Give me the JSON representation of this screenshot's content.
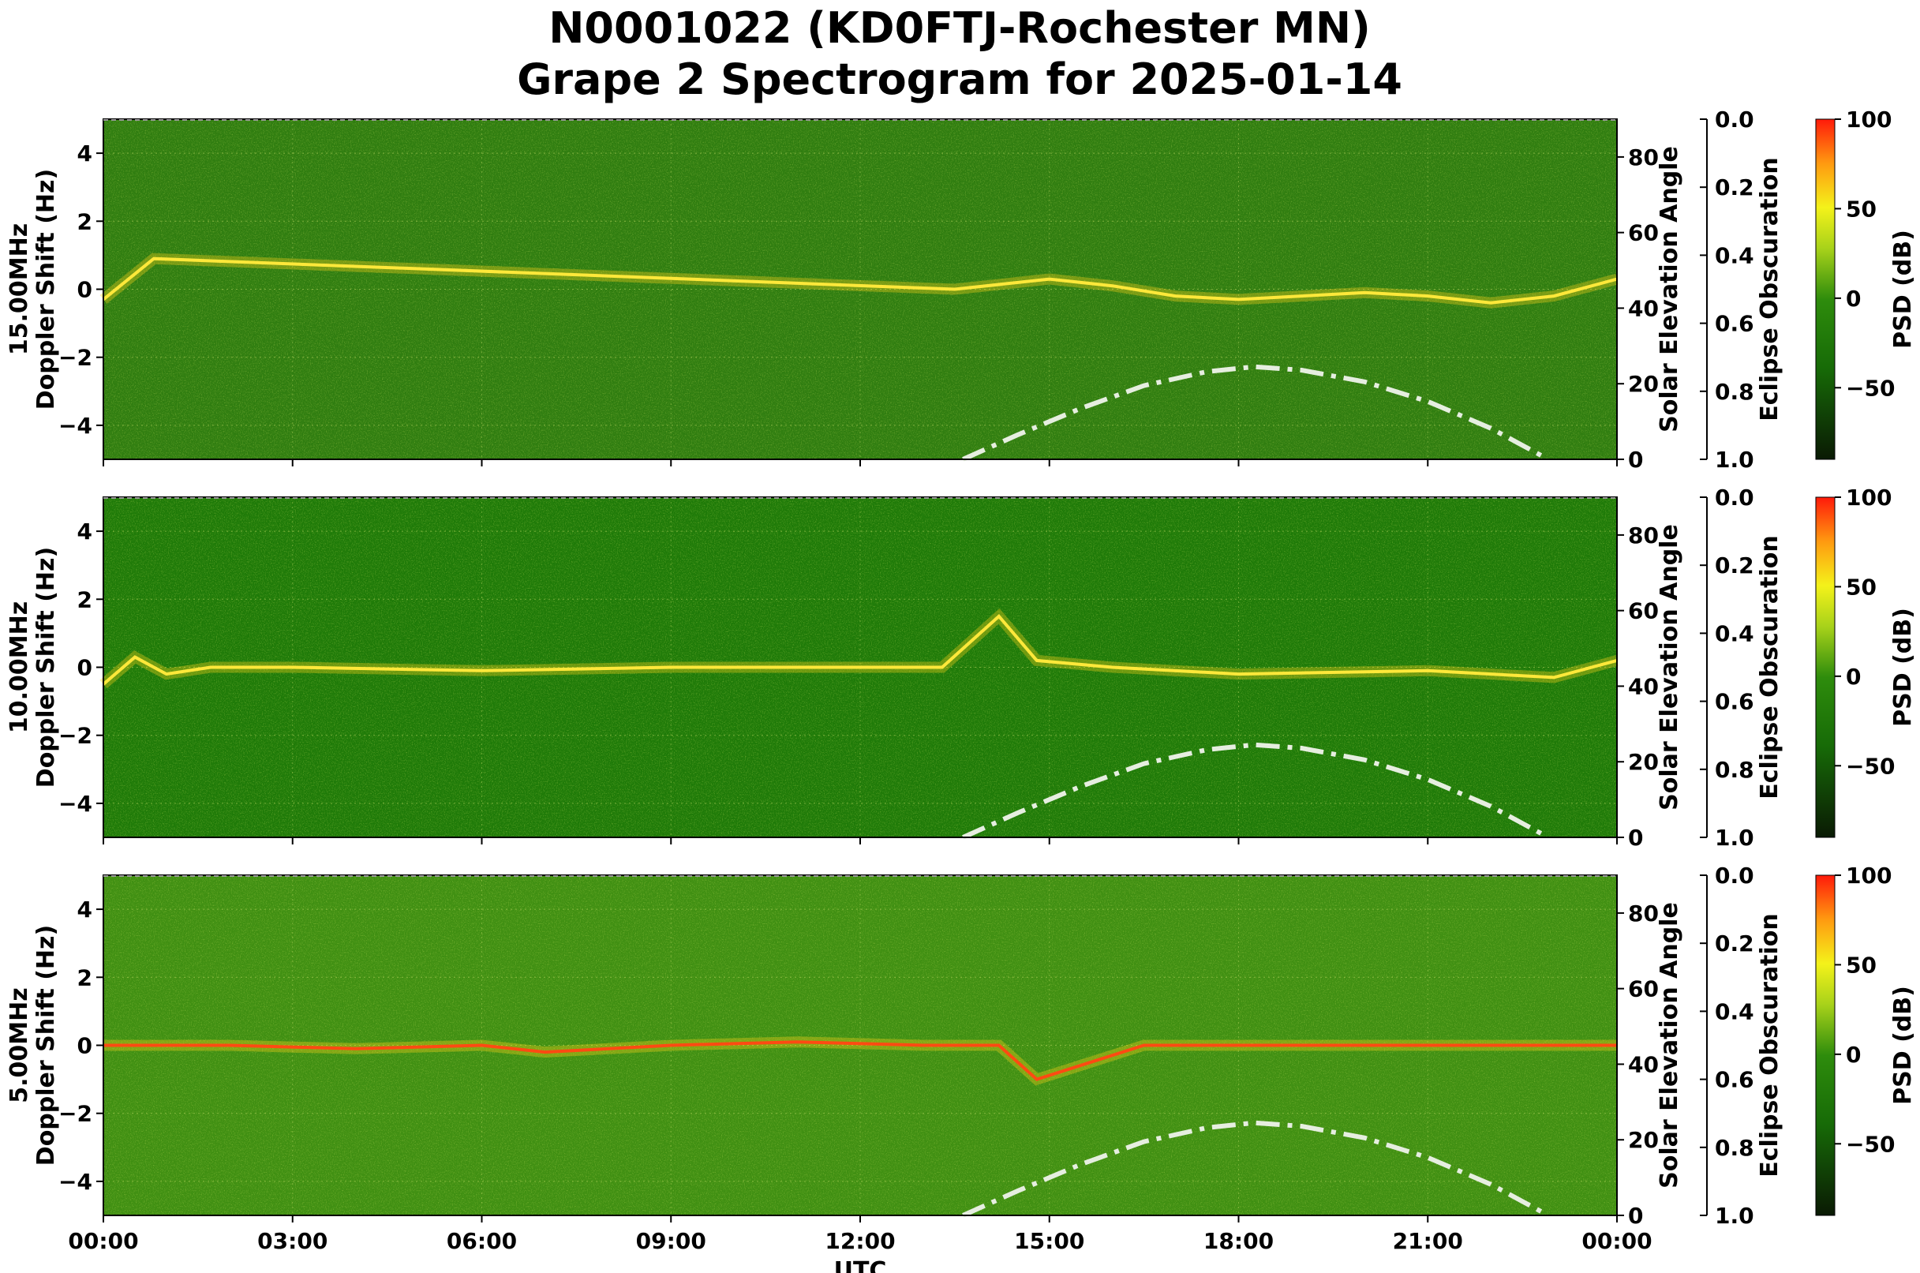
{
  "figure": {
    "title_line1": "N0001022 (KD0FTJ-Rochester MN)",
    "title_line2": "Grape 2 Spectrogram for 2025-01-14"
  },
  "chart_data": [
    {
      "type": "heatmap",
      "frequency": "15.00MHz",
      "ylabel": "15.00MHz\nDoppler Shift (Hz)",
      "xlabel": "",
      "ylim": [
        -5,
        5
      ],
      "yticks": [
        4,
        2,
        0,
        -2,
        -4
      ],
      "ytick_labels": [
        "4",
        "2",
        "0",
        "−2",
        "−4"
      ],
      "xlim_hours": [
        0,
        24
      ],
      "xtick_labels": [
        "00:00",
        "03:00",
        "06:00",
        "09:00",
        "12:00",
        "15:00",
        "18:00",
        "21:00",
        "00:00"
      ],
      "xtick_labels_visible": false,
      "solar_axis": {
        "label": "Solar Elevation Angle",
        "ylim": [
          0,
          90
        ],
        "ticks": [
          "0",
          "20",
          "40",
          "60",
          "80"
        ]
      },
      "eclipse_axis": {
        "label": "Eclipse Obscuration",
        "ylim": [
          1.0,
          0.0
        ],
        "ticks": [
          "0.0",
          "0.2",
          "0.4",
          "0.6",
          "0.8",
          "1.0"
        ]
      },
      "colorbar": {
        "label": "PSD (dB)",
        "range": [
          -90,
          100
        ],
        "ticks": [
          "100",
          "50",
          "0",
          "−50"
        ]
      },
      "background_color": "#2f7d10",
      "signal_trace": [
        [
          0.0,
          -0.3
        ],
        [
          0.8,
          0.9
        ],
        [
          13.5,
          0.0
        ],
        [
          15.0,
          0.3
        ],
        [
          16.0,
          0.1
        ],
        [
          17.0,
          -0.2
        ],
        [
          18.0,
          -0.3
        ],
        [
          19.0,
          -0.2
        ],
        [
          20.0,
          -0.1
        ],
        [
          21.0,
          -0.2
        ],
        [
          22.0,
          -0.4
        ],
        [
          23.0,
          -0.2
        ],
        [
          24.0,
          0.3
        ]
      ],
      "solar_elevation": [
        [
          13.63,
          0
        ],
        [
          14.5,
          6.5
        ],
        [
          15.5,
          13.5
        ],
        [
          16.5,
          19.5
        ],
        [
          17.5,
          23.2
        ],
        [
          18.25,
          24.5
        ],
        [
          19.0,
          23.6
        ],
        [
          20.0,
          20.5
        ],
        [
          21.0,
          15.3
        ],
        [
          22.0,
          8.2
        ],
        [
          22.8,
          1.0
        ],
        [
          22.9,
          0
        ]
      ]
    },
    {
      "type": "heatmap",
      "frequency": "10.00MHz",
      "ylabel": "10.00MHz\nDoppler Shift (Hz)",
      "xlabel": "",
      "ylim": [
        -5,
        5
      ],
      "yticks": [
        4,
        2,
        0,
        -2,
        -4
      ],
      "ytick_labels": [
        "4",
        "2",
        "0",
        "−2",
        "−4"
      ],
      "xlim_hours": [
        0,
        24
      ],
      "xtick_labels": [
        "00:00",
        "03:00",
        "06:00",
        "09:00",
        "12:00",
        "15:00",
        "18:00",
        "21:00",
        "00:00"
      ],
      "xtick_labels_visible": false,
      "solar_axis": {
        "label": "Solar Elevation Angle",
        "ylim": [
          0,
          90
        ],
        "ticks": [
          "0",
          "20",
          "40",
          "60",
          "80"
        ]
      },
      "eclipse_axis": {
        "label": "Eclipse Obscuration",
        "ylim": [
          1.0,
          0.0
        ],
        "ticks": [
          "0.0",
          "0.2",
          "0.4",
          "0.6",
          "0.8",
          "1.0"
        ]
      },
      "colorbar": {
        "label": "PSD (dB)",
        "range": [
          -90,
          100
        ],
        "ticks": [
          "100",
          "50",
          "0",
          "−50"
        ]
      },
      "background_color": "#1e7a08",
      "signal_trace": [
        [
          0.0,
          -0.5
        ],
        [
          0.5,
          0.3
        ],
        [
          1.0,
          -0.2
        ],
        [
          1.7,
          0.0
        ],
        [
          3.0,
          0.0
        ],
        [
          6.0,
          -0.1
        ],
        [
          9.0,
          0.0
        ],
        [
          12.0,
          0.0
        ],
        [
          13.3,
          0.0
        ],
        [
          14.2,
          1.5
        ],
        [
          14.8,
          0.2
        ],
        [
          16.0,
          0.0
        ],
        [
          18.0,
          -0.2
        ],
        [
          21.0,
          -0.1
        ],
        [
          23.0,
          -0.3
        ],
        [
          24.0,
          0.2
        ]
      ],
      "solar_elevation": [
        [
          13.63,
          0
        ],
        [
          14.5,
          6.5
        ],
        [
          15.5,
          13.5
        ],
        [
          16.5,
          19.5
        ],
        [
          17.5,
          23.2
        ],
        [
          18.25,
          24.5
        ],
        [
          19.0,
          23.6
        ],
        [
          20.0,
          20.5
        ],
        [
          21.0,
          15.3
        ],
        [
          22.0,
          8.2
        ],
        [
          22.8,
          1.0
        ],
        [
          22.9,
          0
        ]
      ]
    },
    {
      "type": "heatmap",
      "frequency": "5.00MHz",
      "ylabel": "5.00MHz\nDoppler Shift (Hz)",
      "xlabel": "UTC",
      "ylim": [
        -5,
        5
      ],
      "yticks": [
        4,
        2,
        0,
        -2,
        -4
      ],
      "ytick_labels": [
        "4",
        "2",
        "0",
        "−2",
        "−4"
      ],
      "xlim_hours": [
        0,
        24
      ],
      "xtick_labels": [
        "00:00",
        "03:00",
        "06:00",
        "09:00",
        "12:00",
        "15:00",
        "18:00",
        "21:00",
        "00:00"
      ],
      "xtick_labels_visible": true,
      "solar_axis": {
        "label": "Solar Elevation Angle",
        "ylim": [
          0,
          90
        ],
        "ticks": [
          "0",
          "20",
          "40",
          "60",
          "80"
        ]
      },
      "eclipse_axis": {
        "label": "Eclipse Obscuration",
        "ylim": [
          1.0,
          0.0
        ],
        "ticks": [
          "0.0",
          "0.2",
          "0.4",
          "0.6",
          "0.8",
          "1.0"
        ]
      },
      "colorbar": {
        "label": "PSD (dB)",
        "range": [
          -90,
          100
        ],
        "ticks": [
          "100",
          "50",
          "0",
          "−50"
        ]
      },
      "background_color": "#3f8f12",
      "signal_trace": [
        [
          0.0,
          0.0
        ],
        [
          2.0,
          0.0
        ],
        [
          4.0,
          -0.1
        ],
        [
          6.0,
          0.0
        ],
        [
          7.0,
          -0.2
        ],
        [
          9.0,
          0.0
        ],
        [
          11.0,
          0.1
        ],
        [
          13.0,
          0.0
        ],
        [
          14.2,
          0.0
        ],
        [
          14.8,
          -1.0
        ],
        [
          16.5,
          0.0
        ],
        [
          24.0,
          0.0
        ]
      ],
      "solar_elevation": [
        [
          13.63,
          0
        ],
        [
          14.5,
          6.5
        ],
        [
          15.5,
          13.5
        ],
        [
          16.5,
          19.5
        ],
        [
          17.5,
          23.2
        ],
        [
          18.25,
          24.5
        ],
        [
          19.0,
          23.6
        ],
        [
          20.0,
          20.5
        ],
        [
          21.0,
          15.3
        ],
        [
          22.0,
          8.2
        ],
        [
          22.8,
          1.0
        ],
        [
          22.9,
          0
        ]
      ]
    }
  ]
}
